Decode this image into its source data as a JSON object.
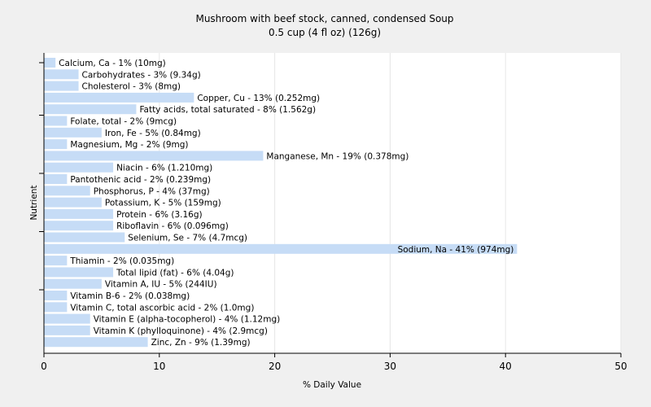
{
  "chart_data": {
    "type": "bar",
    "orientation": "horizontal",
    "title": "Mushroom with beef stock, canned, condensed Soup",
    "subtitle": "0.5 cup (4 fl oz) (126g)",
    "xlabel": "% Daily Value",
    "ylabel": "Nutrient",
    "xlim": [
      0,
      50
    ],
    "xticks": [
      0,
      10,
      20,
      30,
      40,
      50
    ],
    "grid": true,
    "bar_color": "#c6dcf6",
    "categories": [
      "Calcium, Ca",
      "Carbohydrates",
      "Cholesterol",
      "Copper, Cu",
      "Fatty acids, total saturated",
      "Folate, total",
      "Iron, Fe",
      "Magnesium, Mg",
      "Manganese, Mn",
      "Niacin",
      "Pantothenic acid",
      "Phosphorus, P",
      "Potassium, K",
      "Protein",
      "Riboflavin",
      "Selenium, Se",
      "Sodium, Na",
      "Thiamin",
      "Total lipid (fat)",
      "Vitamin A, IU",
      "Vitamin B-6",
      "Vitamin C, total ascorbic acid",
      "Vitamin E (alpha-tocopherol)",
      "Vitamin K (phylloquinone)",
      "Zinc, Zn"
    ],
    "values": [
      1,
      3,
      3,
      13,
      8,
      2,
      5,
      2,
      19,
      6,
      2,
      4,
      5,
      6,
      6,
      7,
      41,
      2,
      6,
      5,
      2,
      2,
      4,
      4,
      9
    ],
    "labels": [
      "Calcium, Ca - 1% (10mg)",
      "Carbohydrates - 3% (9.34g)",
      "Cholesterol - 3% (8mg)",
      "Copper, Cu - 13% (0.252mg)",
      "Fatty acids, total saturated - 8% (1.562g)",
      "Folate, total - 2% (9mcg)",
      "Iron, Fe - 5% (0.84mg)",
      "Magnesium, Mg - 2% (9mg)",
      "Manganese, Mn - 19% (0.378mg)",
      "Niacin - 6% (1.210mg)",
      "Pantothenic acid - 2% (0.239mg)",
      "Phosphorus, P - 4% (37mg)",
      "Potassium, K - 5% (159mg)",
      "Protein - 6% (3.16g)",
      "Riboflavin - 6% (0.096mg)",
      "Selenium, Se - 7% (4.7mcg)",
      "Sodium, Na - 41% (974mg)",
      "Thiamin - 2% (0.035mg)",
      "Total lipid (fat) - 6% (4.04g)",
      "Vitamin A, IU - 5% (244IU)",
      "Vitamin B-6 - 2% (0.038mg)",
      "Vitamin C, total ascorbic acid - 2% (1.0mg)",
      "Vitamin E (alpha-tocopherol) - 4% (1.12mg)",
      "Vitamin K (phylloquinone) - 4% (2.9mcg)",
      "Zinc, Zn - 9% (1.39mg)"
    ]
  }
}
